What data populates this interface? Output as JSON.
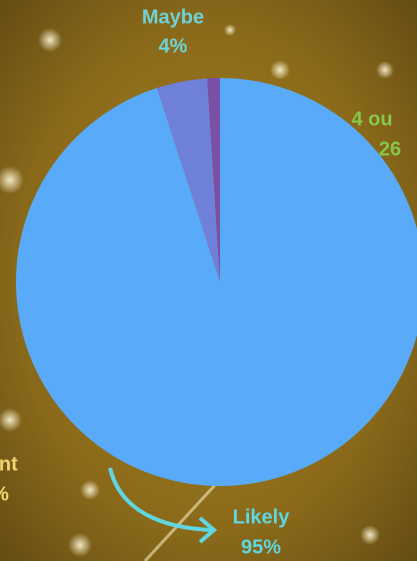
{
  "chart_data": {
    "type": "pie",
    "categories": [
      "Likely",
      "Maybe",
      null
    ],
    "values": [
      95,
      4,
      1
    ],
    "value_labels": [
      "95%",
      "4%",
      null
    ],
    "colors": [
      "#59aaf8",
      "#6f80d8",
      "#7a4fa6"
    ],
    "label_colors": [
      "#5fd6e0",
      "#6ed2d6",
      null
    ],
    "annotations": [
      {
        "text": "4 ou",
        "color": "#86c64c"
      },
      {
        "text": "26",
        "color": "#86c64c"
      },
      {
        "text": "lent",
        "color": "#f2d470"
      },
      {
        "text": "%",
        "color": "#f2d470"
      }
    ]
  }
}
